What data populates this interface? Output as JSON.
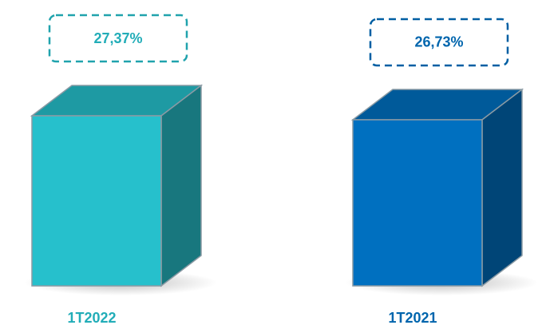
{
  "chart_data": {
    "type": "bar",
    "categories": [
      "1T2022",
      "1T2021"
    ],
    "values": [
      27.37,
      26.73
    ],
    "value_labels": [
      "27,37%",
      "26,73%"
    ],
    "colors": [
      "#26c0cc",
      "#0070c0"
    ]
  }
}
